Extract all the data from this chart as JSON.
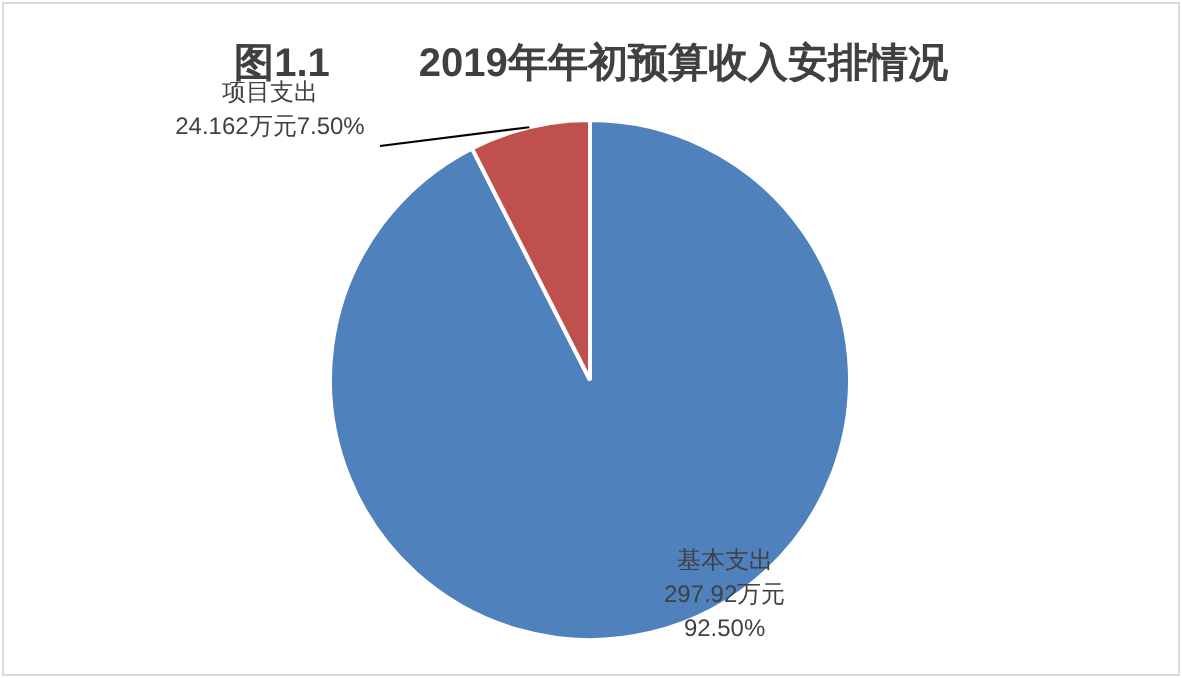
{
  "chart_data": {
    "type": "pie",
    "title": "图1.1        2019年年初预算收入安排情况",
    "categories": [
      "基本支出",
      "项目支出"
    ],
    "values": [
      297.92,
      24.162
    ],
    "colors": [
      "#4f81bd",
      "#c0504d"
    ],
    "value_labels": [
      "297.92万元\n92.50%",
      "24.162万元7.50%"
    ],
    "legend": false
  }
}
